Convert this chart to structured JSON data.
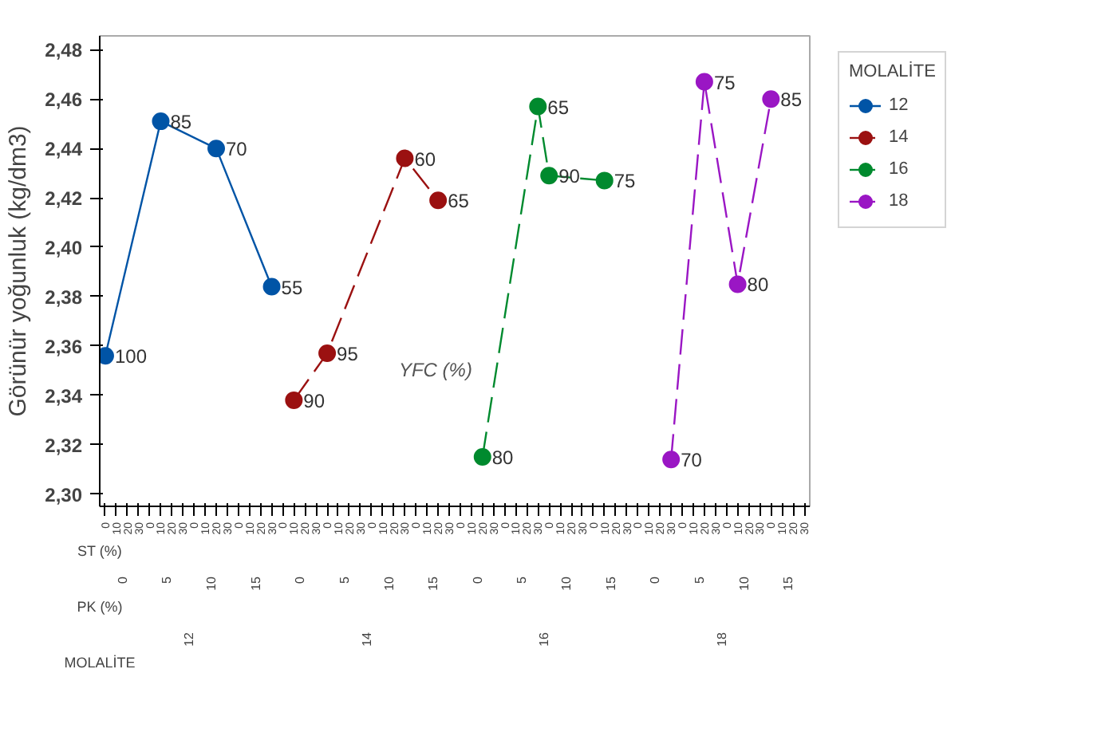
{
  "chart_data": {
    "type": "line",
    "ylabel": "Görünür yoğunluk (kg/dm3)",
    "legend_title": "MOLALİTE",
    "legend": "right",
    "marker": "circle",
    "grid": false,
    "ylim": [
      2.295,
      2.4856
    ],
    "yticks": [
      {
        "value": 2.3,
        "label": "2,30"
      },
      {
        "value": 2.32,
        "label": "2,32"
      },
      {
        "value": 2.34,
        "label": "2,34"
      },
      {
        "value": 2.36,
        "label": "2,36"
      },
      {
        "value": 2.38,
        "label": "2,38"
      },
      {
        "value": 2.4,
        "label": "2,40"
      },
      {
        "value": 2.42,
        "label": "2,42"
      },
      {
        "value": 2.44,
        "label": "2,44"
      },
      {
        "value": 2.46,
        "label": "2,46"
      },
      {
        "value": 2.48,
        "label": "2,48"
      }
    ],
    "categories": [
      "0",
      "10",
      "20",
      "30",
      "0",
      "10",
      "20",
      "30",
      "0",
      "10",
      "20",
      "30",
      "0",
      "10",
      "20",
      "30",
      "0",
      "10",
      "20",
      "30",
      "0",
      "10",
      "20",
      "30",
      "0",
      "10",
      "20",
      "30",
      "0",
      "10",
      "20",
      "30",
      "0",
      "10",
      "20",
      "30",
      "0",
      "10",
      "20",
      "30",
      "0",
      "10",
      "20",
      "30",
      "0",
      "10",
      "20",
      "30",
      "0",
      "10",
      "20",
      "30",
      "0",
      "10",
      "20",
      "30",
      "0",
      "10",
      "20",
      "30",
      "0",
      "10",
      "20",
      "30"
    ],
    "annotations": [
      "YFC (%)",
      "ST (%)",
      "PK (%)",
      "MOLALİTE",
      "0",
      "5",
      "10",
      "15",
      "0",
      "5",
      "10",
      "15",
      "0",
      "5",
      "10",
      "15",
      "0",
      "5",
      "10",
      "15",
      "12",
      "14",
      "16",
      "18",
      "100",
      "85",
      "70",
      "55",
      "90",
      "95",
      "60",
      "65",
      "80",
      "65",
      "90",
      "75",
      "70",
      "75",
      "80",
      "85"
    ],
    "series": [
      {
        "name": "12",
        "color": "#0054a6",
        "line_style": "solid",
        "values": [
          2.356,
          null,
          null,
          null,
          null,
          2.451,
          null,
          null,
          null,
          null,
          2.44,
          null,
          null,
          null,
          null,
          2.384,
          null,
          null,
          null,
          null,
          null,
          null,
          null,
          null,
          null,
          null,
          null,
          null,
          null,
          null,
          null,
          null,
          null,
          null,
          null,
          null,
          null,
          null,
          null,
          null,
          null,
          null,
          null,
          null,
          null,
          null,
          null,
          null,
          null,
          null,
          null,
          null,
          null,
          null,
          null,
          null,
          null,
          null,
          null,
          null,
          null,
          null,
          null,
          null
        ]
      },
      {
        "name": "14",
        "color": "#9b1111",
        "line_style": "dashed",
        "values": [
          null,
          null,
          null,
          null,
          null,
          null,
          null,
          null,
          null,
          null,
          null,
          null,
          null,
          null,
          null,
          null,
          null,
          2.338,
          null,
          null,
          2.357,
          null,
          null,
          null,
          null,
          null,
          null,
          2.436,
          null,
          null,
          2.419,
          null,
          null,
          null,
          null,
          null,
          null,
          null,
          null,
          null,
          null,
          null,
          null,
          null,
          null,
          null,
          null,
          null,
          null,
          null,
          null,
          null,
          null,
          null,
          null,
          null,
          null,
          null,
          null,
          null,
          null,
          null,
          null,
          null
        ]
      },
      {
        "name": "16",
        "color": "#008a2e",
        "line_style": "dashed",
        "values": [
          null,
          null,
          null,
          null,
          null,
          null,
          null,
          null,
          null,
          null,
          null,
          null,
          null,
          null,
          null,
          null,
          null,
          null,
          null,
          null,
          null,
          null,
          null,
          null,
          null,
          null,
          null,
          null,
          null,
          null,
          null,
          null,
          null,
          null,
          2.315,
          null,
          null,
          null,
          null,
          2.457,
          2.429,
          null,
          null,
          null,
          null,
          2.427,
          null,
          null,
          null,
          null,
          null,
          null,
          null,
          null,
          null,
          null,
          null,
          null,
          null,
          null,
          null,
          null,
          null,
          null
        ]
      },
      {
        "name": "18",
        "color": "#9a16c4",
        "line_style": "dashed",
        "values": [
          null,
          null,
          null,
          null,
          null,
          null,
          null,
          null,
          null,
          null,
          null,
          null,
          null,
          null,
          null,
          null,
          null,
          null,
          null,
          null,
          null,
          null,
          null,
          null,
          null,
          null,
          null,
          null,
          null,
          null,
          null,
          null,
          null,
          null,
          null,
          null,
          null,
          null,
          null,
          null,
          null,
          null,
          null,
          null,
          null,
          null,
          null,
          null,
          null,
          null,
          null,
          2.314,
          null,
          null,
          2.467,
          null,
          null,
          2.385,
          null,
          null,
          2.46,
          null,
          null,
          null
        ]
      }
    ]
  }
}
